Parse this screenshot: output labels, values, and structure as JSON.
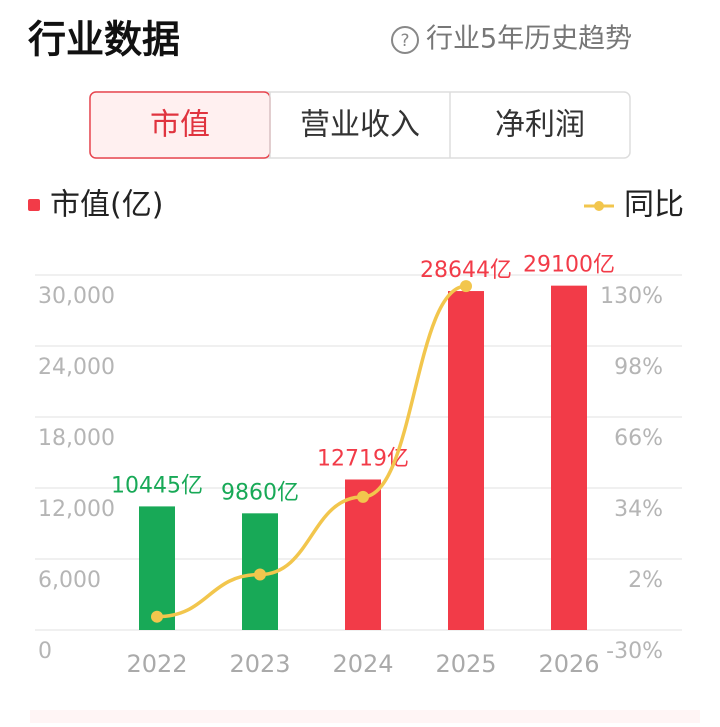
{
  "header": {
    "title": "行业数据",
    "link": "行业5年历史趋势"
  },
  "tabs": {
    "items": [
      "市值",
      "营业收入",
      "净利润"
    ],
    "active": 0
  },
  "chart_data": {
    "type": "bar",
    "categories": [
      "2022",
      "2023",
      "2024",
      "2025",
      "2026"
    ],
    "series": [
      {
        "name": "市值(亿)",
        "type": "bar",
        "color": "#f23b48",
        "colors": [
          "#18a957",
          "#18a957",
          "#f23b48",
          "#f23b48",
          "#f23b48"
        ],
        "values": [
          10445,
          9860,
          12719,
          28644,
          29100
        ],
        "value_labels": [
          "10445亿",
          "9860亿",
          "12719亿",
          "28644亿",
          "29100亿"
        ]
      },
      {
        "name": "同比",
        "type": "line",
        "axis": "y2",
        "color": "#f2c64d",
        "values": [
          -24,
          -5,
          30,
          125,
          null
        ]
      }
    ],
    "ylim": [
      0,
      30000
    ],
    "yticks": [
      0,
      {
        "value": 6000,
        "label": "6,000"
      },
      {
        "value": 12000,
        "label": "12,000"
      },
      {
        "value": 18000,
        "label": "18,000"
      },
      {
        "value": 24000,
        "label": "24,000"
      },
      {
        "value": 30000,
        "label": "30,000"
      }
    ],
    "y2lim": [
      -30,
      130
    ],
    "y2ticks": [
      {
        "value": -30,
        "label": "-30%"
      },
      {
        "value": 2,
        "label": "2%"
      },
      {
        "value": 34,
        "label": "34%"
      },
      {
        "value": 66,
        "label": "66%"
      },
      {
        "value": 98,
        "label": "98%"
      },
      {
        "value": 130,
        "label": "130%"
      }
    ],
    "grid": true
  }
}
